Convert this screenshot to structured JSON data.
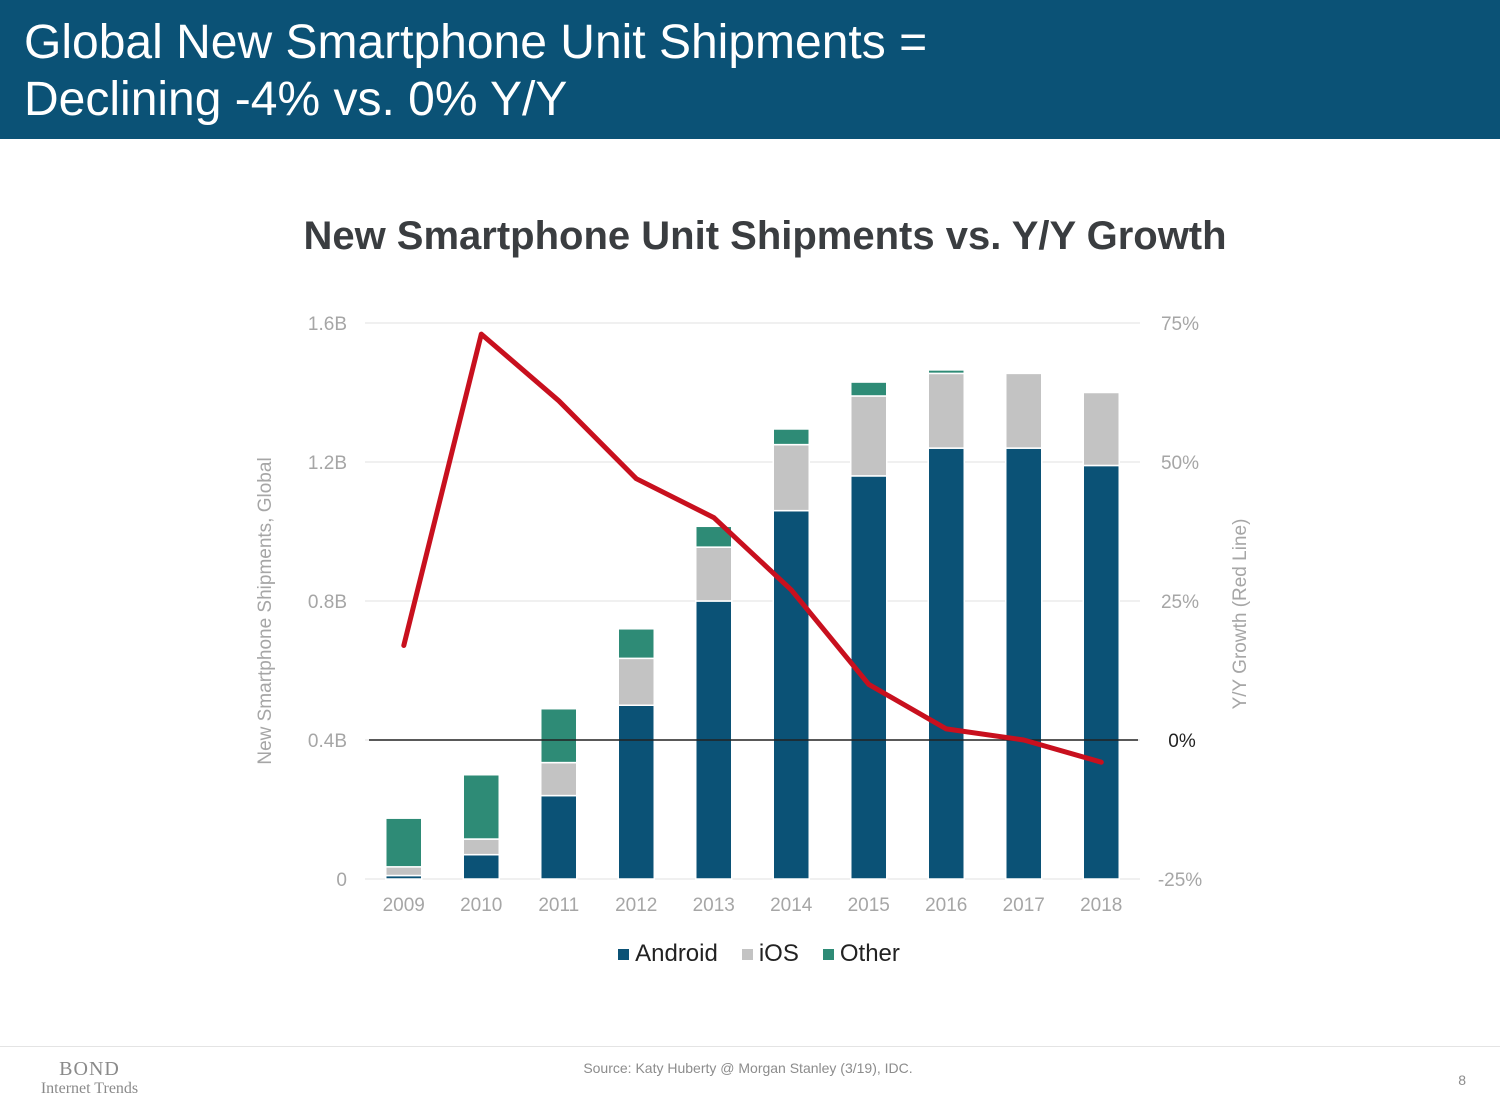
{
  "header": {
    "title_line1": "Global New Smartphone Unit Shipments =",
    "title_line2": "Declining -4% vs. 0% Y/Y"
  },
  "footer": {
    "brand_line1": "BOND",
    "brand_line2": "Internet Trends",
    "source": "Source: Katy Huberty @ Morgan Stanley (3/19), IDC.",
    "page_number": "8"
  },
  "colors": {
    "header_bg": "#0b5276",
    "android": "#0b5276",
    "ios": "#c3c3c3",
    "other": "#2e8b76",
    "growth_line": "#c8101e"
  },
  "chart_data": {
    "type": "bar",
    "stacked": true,
    "title": "New Smartphone Unit Shipments vs. Y/Y Growth",
    "ylabel": "New Smartphone Shipments, Global",
    "y2label": "Y/Y Growth (Red Line)",
    "categories": [
      "2009",
      "2010",
      "2011",
      "2012",
      "2013",
      "2014",
      "2015",
      "2016",
      "2017",
      "2018"
    ],
    "ylim": [
      0,
      1.6
    ],
    "yticks": [
      0,
      0.4,
      0.8,
      1.2,
      1.6
    ],
    "ytick_labels": [
      "0",
      "0.4B",
      "0.8B",
      "1.2B",
      "1.6B"
    ],
    "y2lim": [
      -25,
      75
    ],
    "y2ticks": [
      -25,
      0,
      25,
      50,
      75
    ],
    "y2tick_labels": [
      "-25%",
      "0%",
      "25%",
      "50%",
      "75%"
    ],
    "series": [
      {
        "name": "Android",
        "values": [
          0.01,
          0.07,
          0.24,
          0.5,
          0.8,
          1.06,
          1.16,
          1.24,
          1.24,
          1.19
        ]
      },
      {
        "name": "iOS",
        "values": [
          0.025,
          0.045,
          0.095,
          0.135,
          0.155,
          0.19,
          0.23,
          0.215,
          0.215,
          0.21
        ]
      },
      {
        "name": "Other",
        "values": [
          0.14,
          0.185,
          0.155,
          0.085,
          0.06,
          0.045,
          0.04,
          0.01,
          0.0,
          0.0
        ]
      }
    ],
    "lines": [
      {
        "name": "Y/Y Growth",
        "axis": "secondary",
        "values": [
          17,
          73,
          61,
          47,
          40,
          27,
          10,
          2,
          0,
          -4
        ]
      }
    ],
    "grid": true,
    "legend": "bottom-center"
  }
}
